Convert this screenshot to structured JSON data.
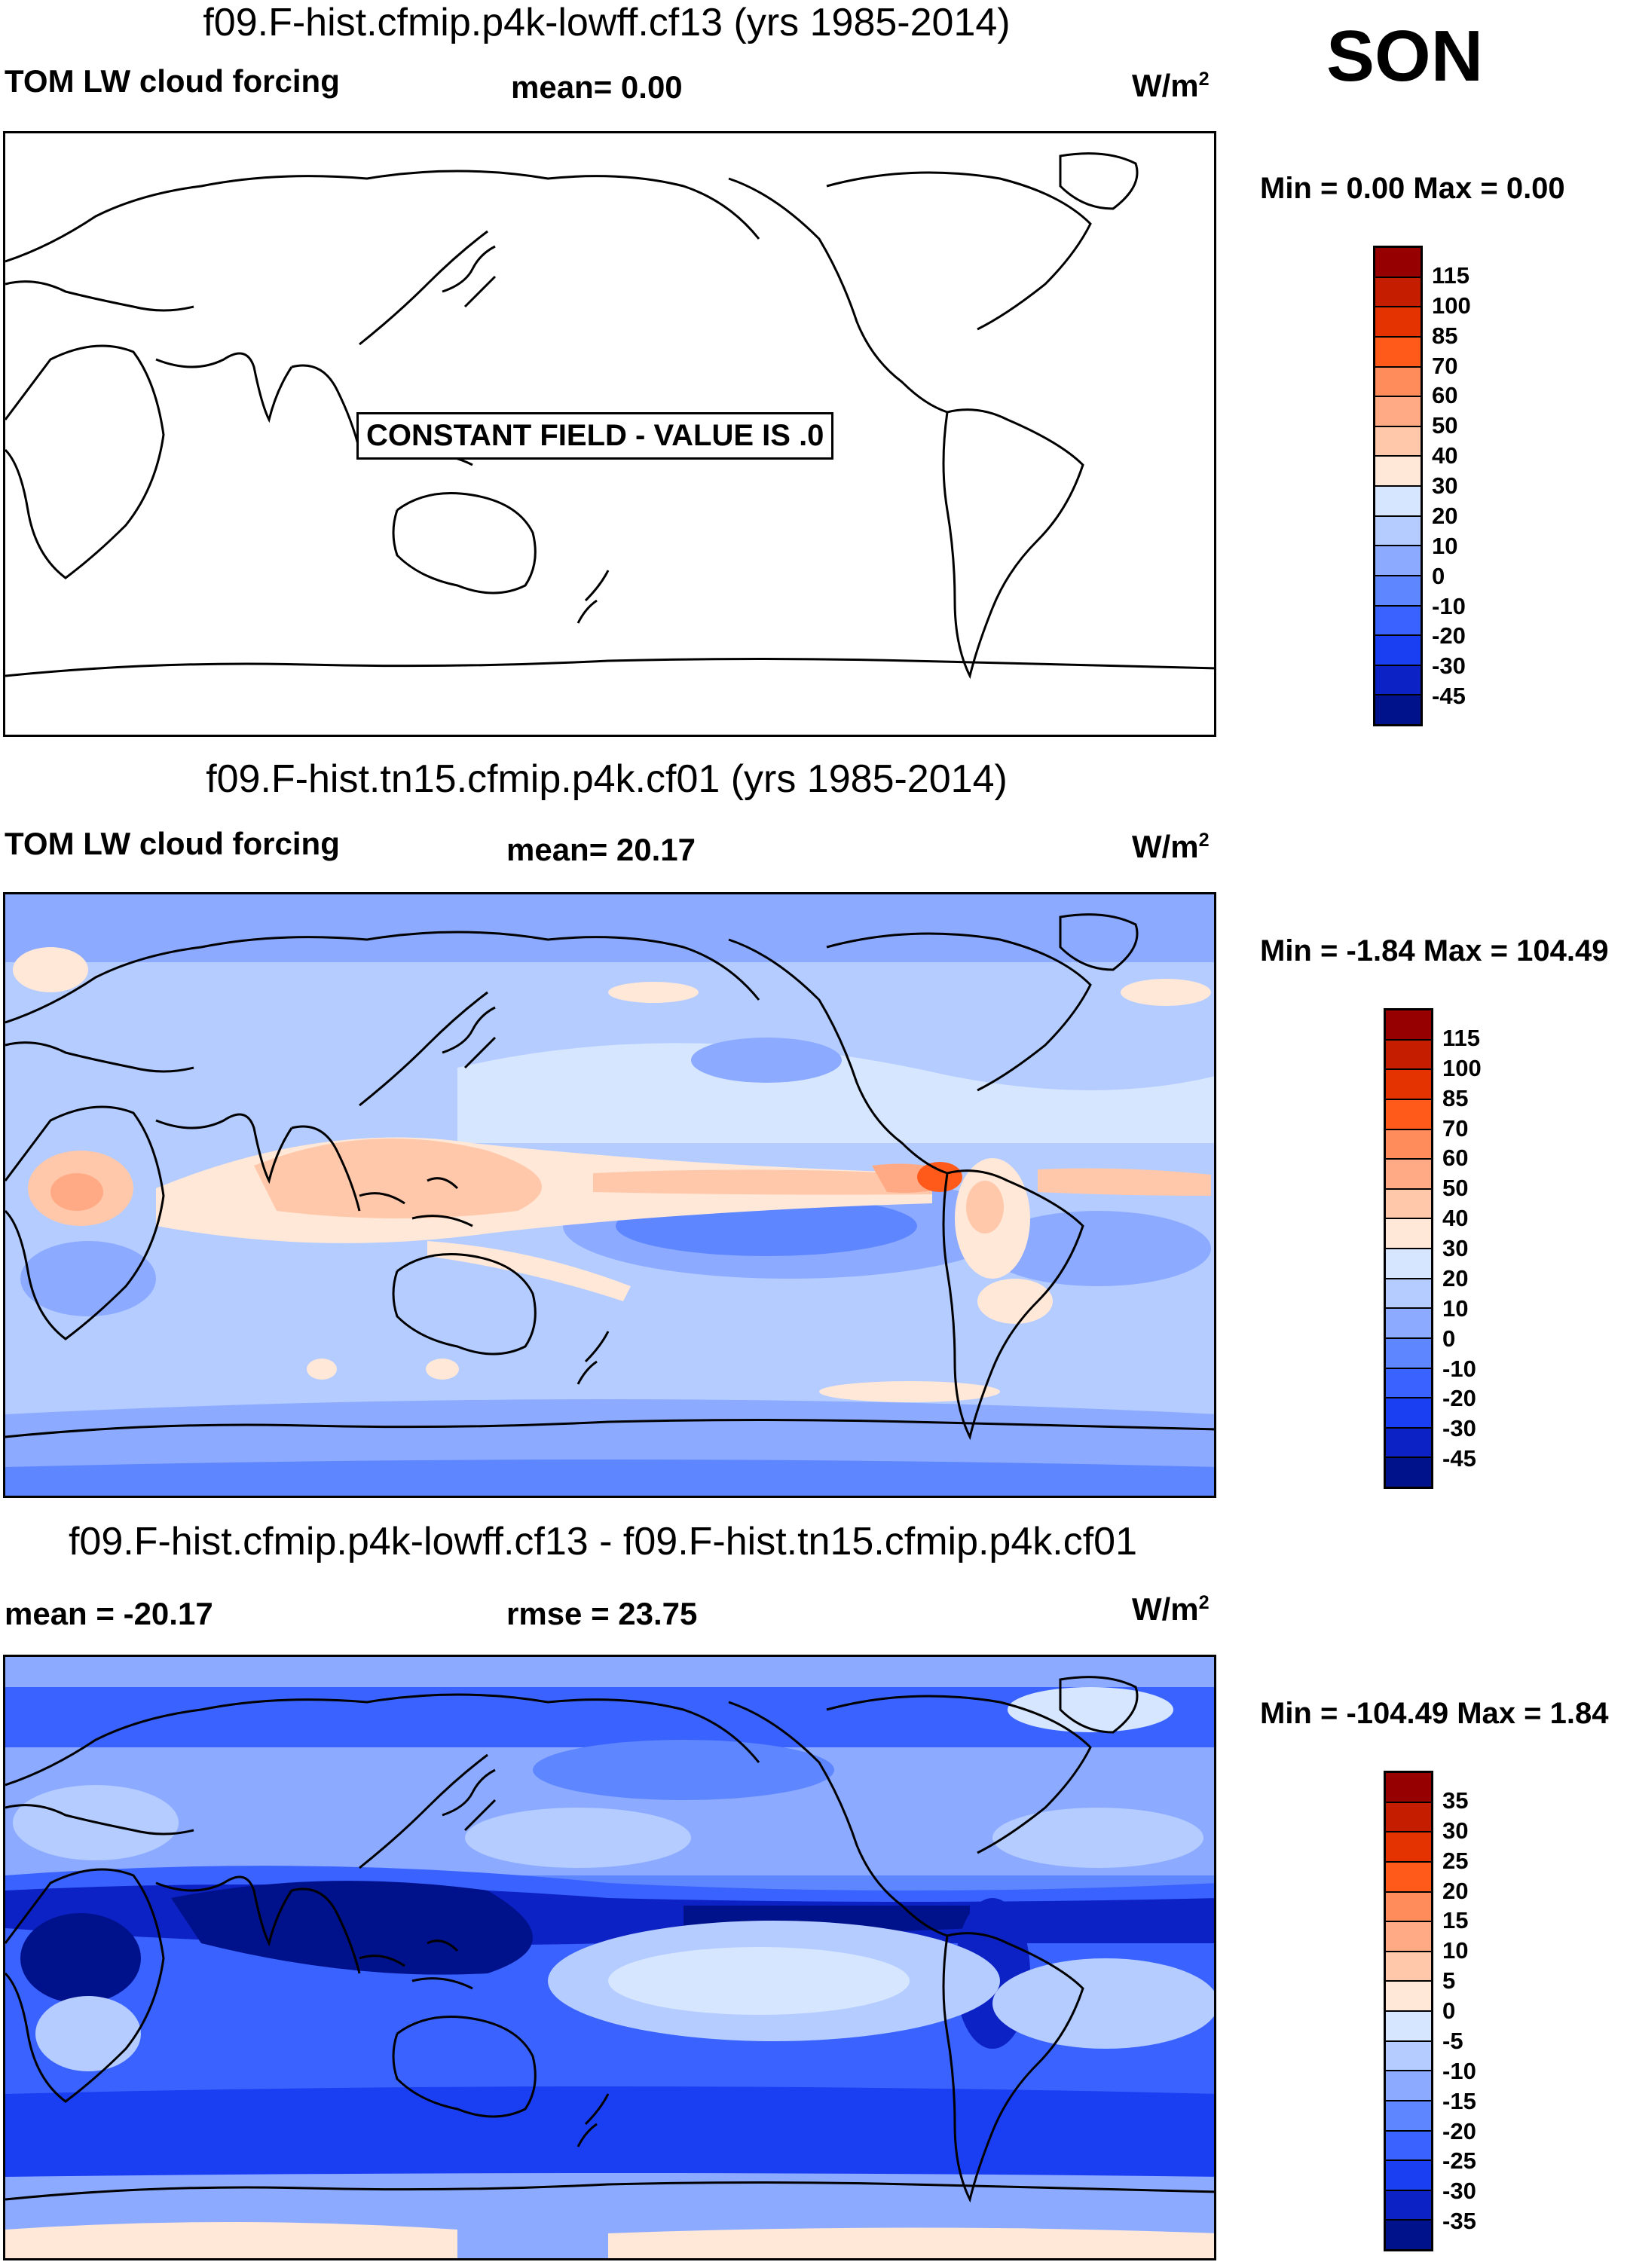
{
  "season": "SON",
  "panels": [
    {
      "title": "f09.F-hist.cfmip.p4k-lowff.cf13 (yrs 1985-2014)",
      "left_label": "TOM LW cloud forcing",
      "center_label": "mean=   0.00",
      "units": "W/m",
      "units_sup": "2",
      "minmax": "Min =   0.00 Max =   0.00",
      "annotation": "CONSTANT FIELD - VALUE IS .0",
      "colorbar": {
        "labels": [
          "115",
          "100",
          "85",
          "70",
          "60",
          "50",
          "40",
          "30",
          "20",
          "10",
          "0",
          "-10",
          "-20",
          "-30",
          "-45"
        ],
        "colors": [
          "#960000",
          "#c41d00",
          "#e43300",
          "#ff5a19",
          "#ff8c5a",
          "#ffaa84",
          "#ffc8aa",
          "#ffe8d8",
          "#d6e6ff",
          "#b4ccff",
          "#8caaff",
          "#5e86ff",
          "#3a62ff",
          "#1a3ef2",
          "#0c22c4",
          "#00118c"
        ]
      }
    },
    {
      "title": "f09.F-hist.tn15.cfmip.p4k.cf01 (yrs 1985-2014)",
      "left_label": "TOM LW cloud forcing",
      "center_label": "mean=  20.17",
      "units": "W/m",
      "units_sup": "2",
      "minmax": "Min =  -1.84 Max = 104.49",
      "colorbar": {
        "labels": [
          "115",
          "100",
          "85",
          "70",
          "60",
          "50",
          "40",
          "30",
          "20",
          "10",
          "0",
          "-10",
          "-20",
          "-30",
          "-45"
        ],
        "colors": [
          "#960000",
          "#c41d00",
          "#e43300",
          "#ff5a19",
          "#ff8c5a",
          "#ffaa84",
          "#ffc8aa",
          "#ffe8d8",
          "#d6e6ff",
          "#b4ccff",
          "#8caaff",
          "#5e86ff",
          "#3a62ff",
          "#1a3ef2",
          "#0c22c4",
          "#00118c"
        ]
      }
    },
    {
      "title": "f09.F-hist.cfmip.p4k-lowff.cf13 - f09.F-hist.tn15.cfmip.p4k.cf01",
      "left_label": "mean = -20.17",
      "center_label": "rmse =  23.75",
      "units": "W/m",
      "units_sup": "2",
      "minmax": "Min = -104.49 Max =   1.84",
      "colorbar": {
        "labels": [
          "35",
          "30",
          "25",
          "20",
          "15",
          "10",
          "5",
          "0",
          "-5",
          "-10",
          "-15",
          "-20",
          "-25",
          "-30",
          "-35"
        ],
        "colors": [
          "#960000",
          "#c41d00",
          "#e43300",
          "#ff5a19",
          "#ff8c5a",
          "#ffaa84",
          "#ffc8aa",
          "#ffe8d8",
          "#d6e6ff",
          "#b4ccff",
          "#8caaff",
          "#5e86ff",
          "#3a62ff",
          "#1a3ef2",
          "#0c22c4",
          "#00118c"
        ]
      }
    }
  ],
  "chart_data": [
    {
      "type": "heatmap",
      "title": "f09.F-hist.cfmip.p4k-lowff.cf13 (yrs 1985-2014)",
      "variable": "TOM LW cloud forcing",
      "units": "W/m2",
      "mean": 0.0,
      "min": 0.0,
      "max": 0.0,
      "contour_levels": [
        -45,
        -30,
        -20,
        -10,
        0,
        10,
        20,
        30,
        40,
        50,
        60,
        70,
        85,
        100,
        115
      ],
      "note": "CONSTANT FIELD - VALUE IS .0"
    },
    {
      "type": "heatmap",
      "title": "f09.F-hist.tn15.cfmip.p4k.cf01 (yrs 1985-2014)",
      "variable": "TOM LW cloud forcing",
      "units": "W/m2",
      "mean": 20.17,
      "min": -1.84,
      "max": 104.49,
      "contour_levels": [
        -45,
        -30,
        -20,
        -10,
        0,
        10,
        20,
        30,
        40,
        50,
        60,
        70,
        85,
        100,
        115
      ]
    },
    {
      "type": "heatmap",
      "title": "f09.F-hist.cfmip.p4k-lowff.cf13 - f09.F-hist.tn15.cfmip.p4k.cf01",
      "units": "W/m2",
      "mean": -20.17,
      "rmse": 23.75,
      "min": -104.49,
      "max": 1.84,
      "contour_levels": [
        -35,
        -30,
        -25,
        -20,
        -15,
        -10,
        -5,
        0,
        5,
        10,
        15,
        20,
        25,
        30,
        35
      ]
    }
  ]
}
